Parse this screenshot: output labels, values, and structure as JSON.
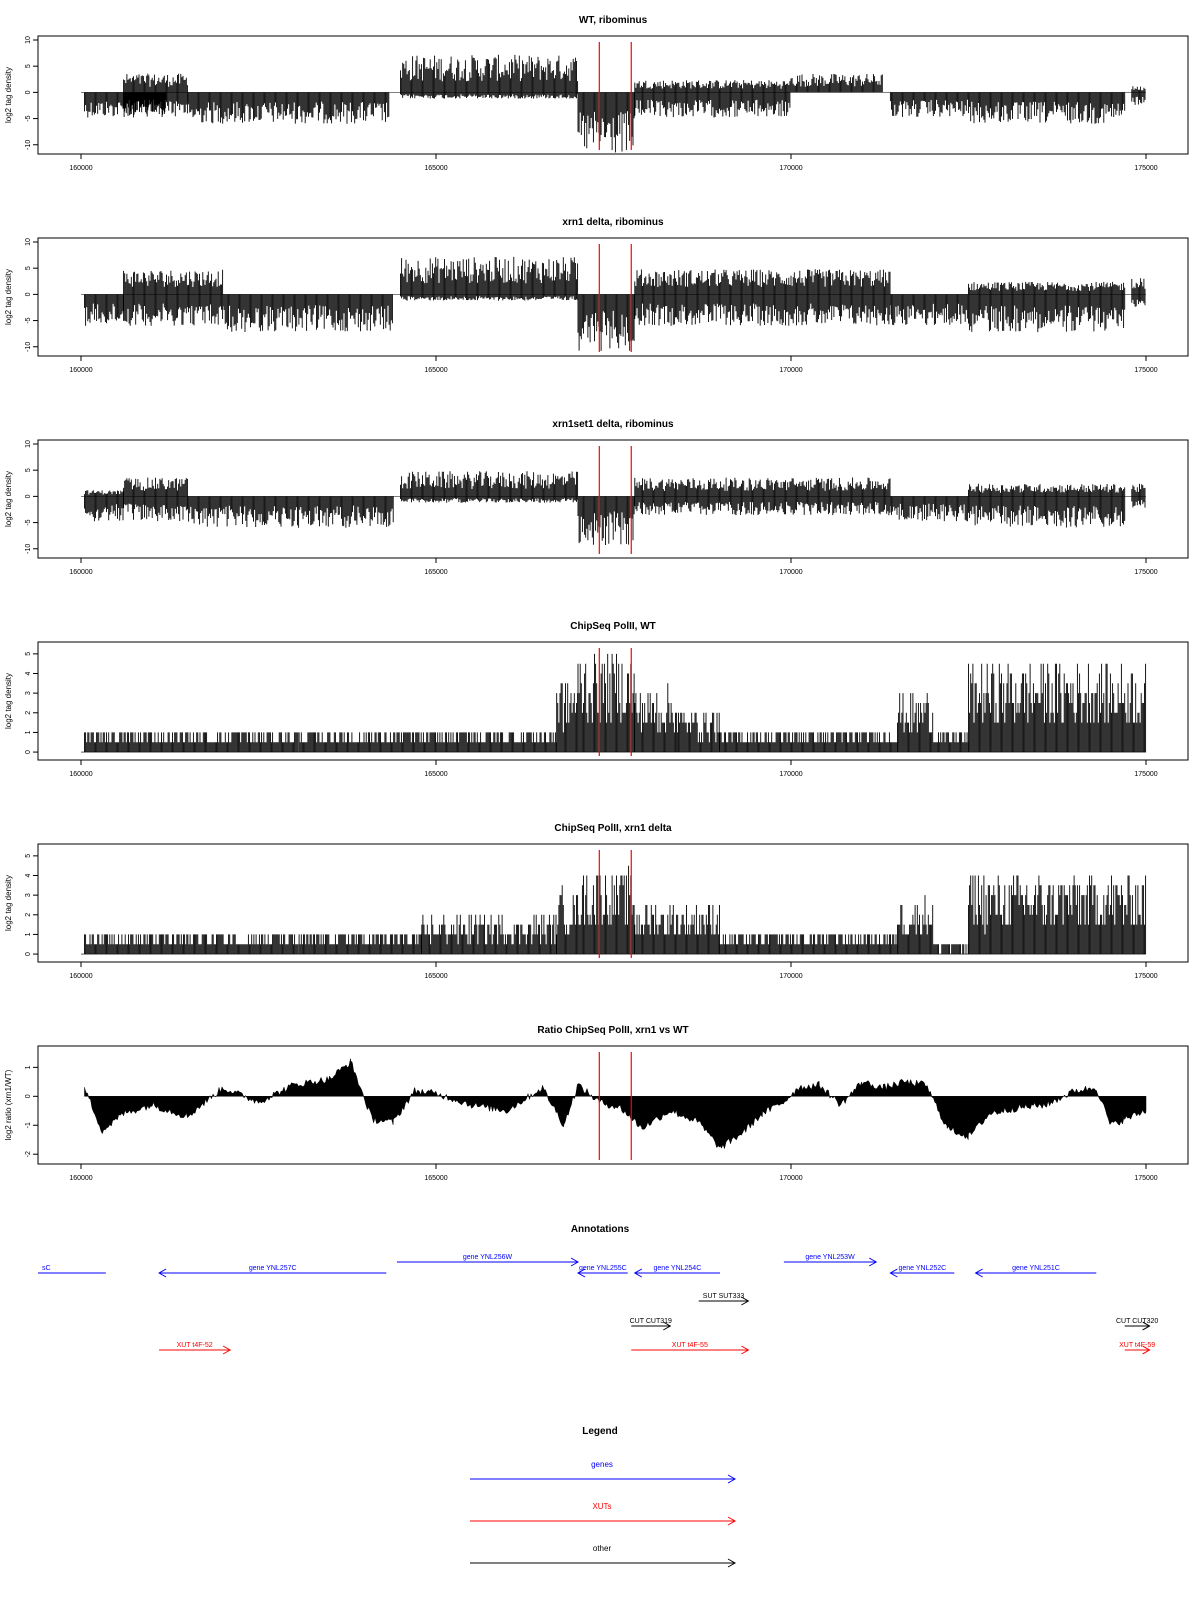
{
  "red_marker_color": "#ff0000",
  "chart_data": [
    {
      "type": "bar",
      "title": "WT, ribominus",
      "ylabel": "log2 tag density",
      "xlim": [
        160000,
        175000
      ],
      "ylim": [
        -11,
        10
      ],
      "y_ticks": [
        "-10",
        "-5",
        "0",
        "5",
        "10"
      ],
      "x_ticks": [
        "160000",
        "165000",
        "170000",
        "175000"
      ],
      "marker_lines": [
        167300,
        167750
      ],
      "bar_color": "#000000",
      "segments": [
        {
          "x": [
            160050,
            161200
          ],
          "top": 0,
          "bottom": -4
        },
        {
          "x": [
            160600,
            161500
          ],
          "top": 3,
          "bottom": -4
        },
        {
          "x": [
            161500,
            164350
          ],
          "top": 0,
          "bottom": -5
        },
        {
          "x": [
            164500,
            167000
          ],
          "top": 6,
          "bottom": -1
        },
        {
          "x": [
            167000,
            167800
          ],
          "top": 0,
          "bottom": -10
        },
        {
          "x": [
            167800,
            170000
          ],
          "top": 2,
          "bottom": -4
        },
        {
          "x": [
            170000,
            171300
          ],
          "top": 3,
          "bottom": 0
        },
        {
          "x": [
            171400,
            172500
          ],
          "top": 0,
          "bottom": -4
        },
        {
          "x": [
            172500,
            174700
          ],
          "top": 0,
          "bottom": -5
        },
        {
          "x": [
            174800,
            175000
          ],
          "top": 1,
          "bottom": -2
        }
      ]
    },
    {
      "type": "bar",
      "title": "xrn1 delta, ribominus",
      "ylabel": "log2 tag density",
      "xlim": [
        160000,
        175000
      ],
      "ylim": [
        -11,
        10
      ],
      "y_ticks": [
        "-10",
        "-5",
        "0",
        "5",
        "10"
      ],
      "x_ticks": [
        "160000",
        "165000",
        "170000",
        "175000"
      ],
      "marker_lines": [
        167300,
        167750
      ],
      "bar_color": "#000000",
      "segments": [
        {
          "x": [
            160050,
            160600
          ],
          "top": 0,
          "bottom": -5
        },
        {
          "x": [
            160600,
            162000
          ],
          "top": 4,
          "bottom": -5
        },
        {
          "x": [
            162000,
            164400
          ],
          "top": 0,
          "bottom": -6
        },
        {
          "x": [
            164500,
            167000
          ],
          "top": 6,
          "bottom": -1
        },
        {
          "x": [
            167000,
            167800
          ],
          "top": 0,
          "bottom": -9
        },
        {
          "x": [
            167800,
            171400
          ],
          "top": 4,
          "bottom": -5
        },
        {
          "x": [
            171400,
            172500
          ],
          "top": 0,
          "bottom": -5
        },
        {
          "x": [
            172500,
            174700
          ],
          "top": 2,
          "bottom": -6
        },
        {
          "x": [
            174800,
            175000
          ],
          "top": 3,
          "bottom": -2
        }
      ]
    },
    {
      "type": "bar",
      "title": "xrn1set1 delta, ribominus",
      "ylabel": "log2 tag density",
      "xlim": [
        160000,
        175000
      ],
      "ylim": [
        -11,
        10
      ],
      "y_ticks": [
        "-10",
        "-5",
        "0",
        "5",
        "10"
      ],
      "x_ticks": [
        "160000",
        "165000",
        "170000",
        "175000"
      ],
      "marker_lines": [
        167300,
        167750
      ],
      "bar_color": "#000000",
      "segments": [
        {
          "x": [
            160050,
            160600
          ],
          "top": 1,
          "bottom": -4
        },
        {
          "x": [
            160600,
            161500
          ],
          "top": 3,
          "bottom": -4
        },
        {
          "x": [
            161500,
            164400
          ],
          "top": 0,
          "bottom": -5
        },
        {
          "x": [
            164500,
            167000
          ],
          "top": 4,
          "bottom": -1
        },
        {
          "x": [
            167000,
            167800
          ],
          "top": 0,
          "bottom": -8
        },
        {
          "x": [
            167800,
            171400
          ],
          "top": 3,
          "bottom": -3
        },
        {
          "x": [
            171400,
            172500
          ],
          "top": 0,
          "bottom": -4
        },
        {
          "x": [
            172500,
            174700
          ],
          "top": 2,
          "bottom": -5
        },
        {
          "x": [
            174800,
            175000
          ],
          "top": 2,
          "bottom": -2
        }
      ]
    },
    {
      "type": "bar",
      "title": "ChipSeq PolII, WT",
      "ylabel": "log2 tag density",
      "xlim": [
        160000,
        175000
      ],
      "ylim": [
        -0.2,
        5.4
      ],
      "y_ticks": [
        "0",
        "1",
        "2",
        "3",
        "4",
        "5"
      ],
      "x_ticks": [
        "160000",
        "165000",
        "170000",
        "175000"
      ],
      "marker_lines": [
        167300,
        167750
      ],
      "bar_color": "#000000",
      "segments": [
        {
          "x": [
            160050,
            166700
          ],
          "top": 1,
          "bottom": 0
        },
        {
          "x": [
            166700,
            167000
          ],
          "top": 3.2,
          "bottom": 0
        },
        {
          "x": [
            167000,
            167800
          ],
          "top": 4.2,
          "bottom": 0
        },
        {
          "x": [
            167800,
            168400
          ],
          "top": 2.8,
          "bottom": 0
        },
        {
          "x": [
            168400,
            169000
          ],
          "top": 1.8,
          "bottom": 0
        },
        {
          "x": [
            169000,
            171500
          ],
          "top": 1,
          "bottom": 0
        },
        {
          "x": [
            171500,
            172000
          ],
          "top": 2.5,
          "bottom": 0
        },
        {
          "x": [
            172000,
            172500
          ],
          "top": 1,
          "bottom": 0
        },
        {
          "x": [
            172500,
            175000
          ],
          "top": 3.8,
          "bottom": 0
        }
      ]
    },
    {
      "type": "bar",
      "title": "ChipSeq PolII, xrn1 delta",
      "ylabel": "log2 tag density",
      "xlim": [
        160000,
        175000
      ],
      "ylim": [
        -0.2,
        5.4
      ],
      "y_ticks": [
        "0",
        "1",
        "2",
        "3",
        "4",
        "5"
      ],
      "x_ticks": [
        "160000",
        "165000",
        "170000",
        "175000"
      ],
      "marker_lines": [
        167300,
        167750
      ],
      "bar_color": "#000000",
      "segments": [
        {
          "x": [
            160050,
            164800
          ],
          "top": 1,
          "bottom": 0
        },
        {
          "x": [
            164800,
            166700
          ],
          "top": 1.6,
          "bottom": 0
        },
        {
          "x": [
            166700,
            167000
          ],
          "top": 2.8,
          "bottom": 0
        },
        {
          "x": [
            167000,
            167800
          ],
          "top": 3.6,
          "bottom": 0
        },
        {
          "x": [
            167800,
            169000
          ],
          "top": 2.2,
          "bottom": 0
        },
        {
          "x": [
            169000,
            171500
          ],
          "top": 1,
          "bottom": 0
        },
        {
          "x": [
            171500,
            172000
          ],
          "top": 2.4,
          "bottom": 0
        },
        {
          "x": [
            172000,
            172500
          ],
          "top": 0.4,
          "bottom": 0
        },
        {
          "x": [
            172500,
            175000
          ],
          "top": 3.4,
          "bottom": 0
        }
      ]
    },
    {
      "type": "area",
      "title": "Ratio ChipSeq PolII, xrn1 vs WT",
      "ylabel": "log2 ratio (xrn1/WT)",
      "xlim": [
        160000,
        175000
      ],
      "ylim": [
        -2.2,
        1.6
      ],
      "y_ticks": [
        "-2",
        "-1",
        "0",
        "1"
      ],
      "y_tick_values": [
        -2,
        -1,
        0,
        1
      ],
      "x_ticks": [
        "160000",
        "165000",
        "170000",
        "175000"
      ],
      "marker_lines": [
        167300,
        167750
      ],
      "area_color": "#000000",
      "x": [
        160050,
        160300,
        160600,
        161000,
        161500,
        162000,
        162500,
        163000,
        163500,
        163800,
        164100,
        164400,
        164700,
        165000,
        165500,
        166000,
        166500,
        166800,
        167000,
        167300,
        167600,
        167900,
        168300,
        168700,
        169000,
        169300,
        169600,
        169900,
        170100,
        170400,
        170700,
        171000,
        171300,
        171600,
        171900,
        172200,
        172500,
        172800,
        173200,
        173600,
        174000,
        174300,
        174500,
        174700,
        175000
      ],
      "y": [
        0.3,
        -1.2,
        -0.6,
        -0.3,
        -0.7,
        0.3,
        -0.2,
        0.4,
        0.6,
        1.2,
        -0.8,
        -0.9,
        0.2,
        0.1,
        -0.3,
        -0.5,
        0.3,
        -1.0,
        0.4,
        -0.2,
        -0.4,
        -1.1,
        -0.5,
        -0.9,
        -1.8,
        -1.3,
        -0.6,
        -0.2,
        0.3,
        0.4,
        -0.3,
        0.5,
        0.3,
        0.5,
        0.4,
        -1.1,
        -1.4,
        -0.6,
        -0.4,
        -0.3,
        0.2,
        0.3,
        -1.0,
        -0.8,
        -0.5
      ]
    }
  ],
  "annotations": {
    "title": "Annotations",
    "genes": [
      {
        "label": "sC",
        "x1": 160050,
        "x2": 160350,
        "dir": "none"
      },
      {
        "label": "gene YNL257C",
        "x1": 161100,
        "x2": 164300,
        "dir": "left"
      },
      {
        "label": "gene YNL256W",
        "x1": 164450,
        "x2": 167000,
        "dir": "right"
      },
      {
        "label": "gene YNL255C",
        "x1": 167000,
        "x2": 167700,
        "dir": "left"
      },
      {
        "label": "gene YNL254C",
        "x1": 167800,
        "x2": 169000,
        "dir": "left"
      },
      {
        "label": "gene YNL253W",
        "x1": 169900,
        "x2": 171200,
        "dir": "right"
      },
      {
        "label": "gene YNL252C",
        "x1": 171400,
        "x2": 172300,
        "dir": "left"
      },
      {
        "label": "gene YNL251C",
        "x1": 172600,
        "x2": 174300,
        "dir": "left"
      }
    ],
    "others": [
      {
        "label": "SUT SUT333",
        "x1": 168700,
        "x2": 169400,
        "dir": "right"
      },
      {
        "label": "CUT CUT319",
        "x1": 167750,
        "x2": 168300,
        "dir": "right"
      },
      {
        "label": "CUT CUT320",
        "x1": 174700,
        "x2": 175050,
        "dir": "right"
      }
    ],
    "xuts": [
      {
        "label": "XUT t4F-52",
        "x1": 161100,
        "x2": 162100,
        "dir": "right"
      },
      {
        "label": "XUT t4F-55",
        "x1": 167750,
        "x2": 169400,
        "dir": "right"
      },
      {
        "label": "XUT t4F-59",
        "x1": 174700,
        "x2": 175050,
        "dir": "right"
      }
    ]
  },
  "legend": {
    "title": "Legend",
    "items": [
      {
        "label": "genes",
        "color": "#0000ff"
      },
      {
        "label": "XUTs",
        "color": "#ff0000"
      },
      {
        "label": "other",
        "color": "#000000"
      }
    ]
  },
  "colors": {
    "gene": "#0000ff",
    "xut": "#ff0000",
    "other": "#000000"
  }
}
